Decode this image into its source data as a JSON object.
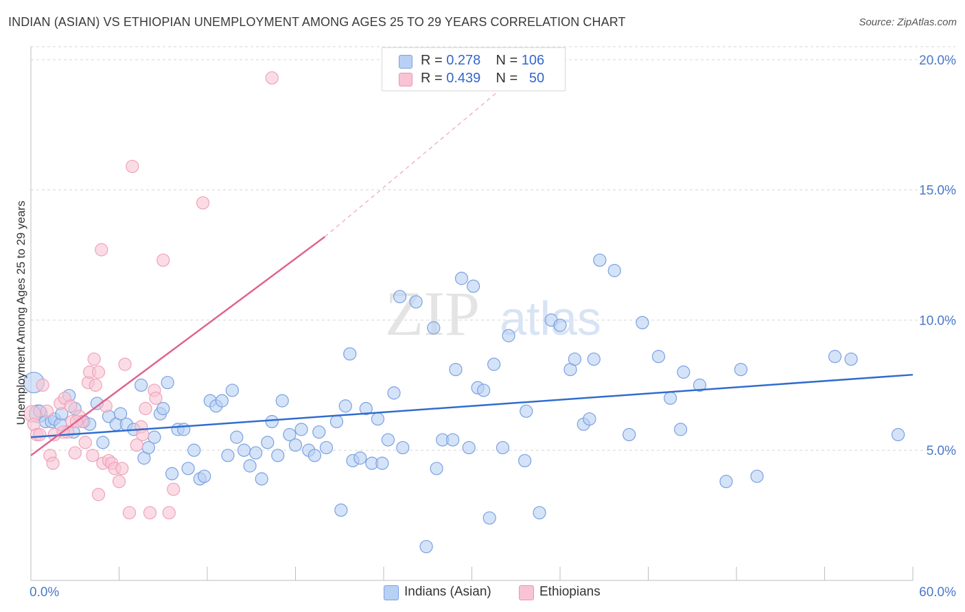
{
  "title": "INDIAN (ASIAN) VS ETHIOPIAN UNEMPLOYMENT AMONG AGES 25 TO 29 YEARS CORRELATION CHART",
  "source": "Source: ZipAtlas.com",
  "watermark": {
    "zip": "ZIP",
    "atlas": "atlas"
  },
  "legend": {
    "rows": [
      {
        "r_label": "R =",
        "r_value": "0.278",
        "n_label": "N =",
        "n_value": "106",
        "color": "#4a7fd4",
        "fill": "#b8d0f4"
      },
      {
        "r_label": "R =",
        "r_value": "0.439",
        "n_label": "N =",
        "n_value": "50",
        "color": "#e8729a",
        "fill": "#f8c4d4"
      }
    ]
  },
  "bottom_legend": [
    {
      "label": "Indians (Asian)",
      "fill": "#b8d0f4",
      "stroke": "#7aa0e0"
    },
    {
      "label": "Ethiopians",
      "fill": "#f8c4d4",
      "stroke": "#e896b0"
    }
  ],
  "chart_data": {
    "type": "scatter",
    "title": "INDIAN (ASIAN) VS ETHIOPIAN UNEMPLOYMENT AMONG AGES 25 TO 29 YEARS CORRELATION CHART",
    "xlabel": "",
    "ylabel": "Unemployment Among Ages 25 to 29 years",
    "xlim": [
      0,
      60
    ],
    "ylim": [
      0,
      20.5
    ],
    "x_tick_labels": [
      "0.0%",
      "60.0%"
    ],
    "y_ticks": [
      5,
      10,
      15,
      20
    ],
    "y_tick_labels": [
      "5.0%",
      "10.0%",
      "15.0%",
      "20.0%"
    ],
    "grid": true,
    "legend_position": "top-center",
    "series": [
      {
        "name": "Indians (Asian)",
        "color": "#4a7fd4",
        "fill": "#b8d0f4",
        "trend": {
          "x0": 0,
          "y0": 5.5,
          "x1": 60,
          "y1": 7.9
        },
        "points": [
          [
            0.2,
            7.6
          ],
          [
            0.5,
            6.4
          ],
          [
            1.0,
            6.1
          ],
          [
            1.4,
            6.1
          ],
          [
            1.6,
            6.2
          ],
          [
            2.0,
            6.0
          ],
          [
            2.1,
            6.4
          ],
          [
            2.6,
            7.1
          ],
          [
            2.9,
            5.7
          ],
          [
            3.0,
            6.6
          ],
          [
            3.6,
            6.1
          ],
          [
            4.0,
            6.0
          ],
          [
            4.5,
            6.8
          ],
          [
            4.9,
            5.3
          ],
          [
            5.3,
            6.3
          ],
          [
            5.8,
            6.0
          ],
          [
            6.1,
            6.4
          ],
          [
            6.5,
            6.0
          ],
          [
            7.0,
            5.8
          ],
          [
            7.5,
            7.5
          ],
          [
            7.7,
            4.7
          ],
          [
            8.0,
            5.1
          ],
          [
            8.4,
            5.5
          ],
          [
            8.8,
            6.4
          ],
          [
            9.3,
            7.6
          ],
          [
            9.6,
            4.1
          ],
          [
            10.0,
            5.8
          ],
          [
            10.4,
            5.8
          ],
          [
            10.7,
            4.3
          ],
          [
            11.1,
            5.0
          ],
          [
            11.5,
            3.9
          ],
          [
            11.8,
            4.0
          ],
          [
            12.2,
            6.9
          ],
          [
            12.6,
            6.7
          ],
          [
            13.0,
            6.9
          ],
          [
            13.4,
            4.8
          ],
          [
            13.7,
            7.3
          ],
          [
            14.0,
            5.5
          ],
          [
            14.5,
            5.0
          ],
          [
            14.9,
            4.4
          ],
          [
            15.3,
            4.9
          ],
          [
            15.7,
            3.9
          ],
          [
            16.1,
            5.3
          ],
          [
            16.4,
            6.1
          ],
          [
            16.8,
            4.8
          ],
          [
            17.1,
            6.9
          ],
          [
            17.6,
            5.6
          ],
          [
            18.0,
            5.2
          ],
          [
            18.4,
            5.8
          ],
          [
            18.9,
            5.0
          ],
          [
            19.3,
            4.8
          ],
          [
            19.6,
            5.7
          ],
          [
            20.1,
            5.1
          ],
          [
            20.8,
            6.1
          ],
          [
            21.1,
            2.7
          ],
          [
            21.4,
            6.7
          ],
          [
            21.7,
            8.7
          ],
          [
            21.9,
            4.6
          ],
          [
            22.4,
            4.7
          ],
          [
            22.8,
            6.6
          ],
          [
            23.2,
            4.5
          ],
          [
            23.6,
            6.2
          ],
          [
            23.9,
            4.5
          ],
          [
            24.3,
            5.4
          ],
          [
            24.7,
            7.2
          ],
          [
            25.1,
            10.9
          ],
          [
            25.3,
            5.1
          ],
          [
            26.2,
            10.7
          ],
          [
            26.9,
            1.3
          ],
          [
            27.4,
            9.7
          ],
          [
            27.6,
            4.3
          ],
          [
            28.0,
            5.4
          ],
          [
            28.7,
            5.4
          ],
          [
            28.9,
            8.1
          ],
          [
            29.3,
            11.6
          ],
          [
            29.8,
            5.1
          ],
          [
            30.1,
            11.3
          ],
          [
            30.4,
            7.4
          ],
          [
            30.8,
            7.3
          ],
          [
            31.2,
            2.4
          ],
          [
            31.5,
            8.3
          ],
          [
            32.1,
            5.1
          ],
          [
            32.5,
            9.4
          ],
          [
            33.6,
            4.6
          ],
          [
            33.7,
            6.5
          ],
          [
            34.6,
            2.6
          ],
          [
            35.4,
            10.0
          ],
          [
            36.0,
            9.8
          ],
          [
            36.7,
            8.1
          ],
          [
            37.0,
            8.5
          ],
          [
            37.6,
            6.0
          ],
          [
            38.0,
            6.2
          ],
          [
            38.3,
            8.5
          ],
          [
            38.7,
            12.3
          ],
          [
            39.7,
            11.9
          ],
          [
            40.7,
            5.6
          ],
          [
            41.6,
            9.9
          ],
          [
            42.7,
            8.6
          ],
          [
            43.5,
            7.0
          ],
          [
            44.2,
            5.8
          ],
          [
            44.4,
            8.0
          ],
          [
            45.5,
            7.5
          ],
          [
            47.3,
            3.8
          ],
          [
            48.3,
            8.1
          ],
          [
            49.4,
            4.0
          ],
          [
            54.7,
            8.6
          ],
          [
            55.8,
            8.5
          ],
          [
            59.0,
            5.6
          ],
          [
            0.6,
            6.5
          ],
          [
            9.0,
            6.6
          ]
        ]
      },
      {
        "name": "Ethiopians",
        "color": "#e8729a",
        "fill": "#f8c4d4",
        "trend": {
          "x0": 0,
          "y0": 4.8,
          "x1": 20,
          "y1": 13.2
        },
        "trend_extension": {
          "x0": 20,
          "y0": 13.2,
          "x1": 33.3,
          "y1": 19.5
        },
        "points": [
          [
            0.1,
            6.4
          ],
          [
            0.2,
            6.0
          ],
          [
            0.4,
            5.6
          ],
          [
            0.6,
            5.6
          ],
          [
            0.8,
            7.5
          ],
          [
            1.1,
            6.5
          ],
          [
            1.3,
            4.8
          ],
          [
            1.5,
            4.5
          ],
          [
            1.6,
            5.6
          ],
          [
            2.0,
            6.8
          ],
          [
            2.3,
            7.0
          ],
          [
            2.5,
            5.7
          ],
          [
            2.7,
            6.7
          ],
          [
            2.8,
            6.1
          ],
          [
            3.0,
            4.9
          ],
          [
            3.3,
            6.3
          ],
          [
            3.5,
            6.1
          ],
          [
            3.7,
            5.3
          ],
          [
            3.9,
            7.6
          ],
          [
            4.0,
            8.0
          ],
          [
            4.2,
            4.8
          ],
          [
            4.3,
            8.5
          ],
          [
            4.4,
            7.5
          ],
          [
            4.6,
            8.0
          ],
          [
            4.6,
            3.3
          ],
          [
            4.8,
            12.7
          ],
          [
            4.9,
            4.5
          ],
          [
            5.1,
            6.7
          ],
          [
            5.3,
            4.6
          ],
          [
            5.5,
            4.5
          ],
          [
            5.7,
            4.3
          ],
          [
            6.0,
            3.8
          ],
          [
            6.2,
            4.3
          ],
          [
            6.4,
            8.3
          ],
          [
            6.7,
            2.6
          ],
          [
            6.9,
            15.9
          ],
          [
            7.2,
            5.2
          ],
          [
            7.5,
            5.9
          ],
          [
            7.6,
            5.6
          ],
          [
            7.8,
            6.6
          ],
          [
            8.1,
            2.6
          ],
          [
            8.4,
            7.3
          ],
          [
            8.5,
            7.0
          ],
          [
            9.0,
            12.3
          ],
          [
            9.4,
            2.6
          ],
          [
            9.7,
            3.5
          ],
          [
            11.7,
            14.5
          ],
          [
            16.4,
            19.3
          ],
          [
            3.1,
            6.1
          ],
          [
            2.2,
            5.7
          ]
        ]
      }
    ]
  }
}
